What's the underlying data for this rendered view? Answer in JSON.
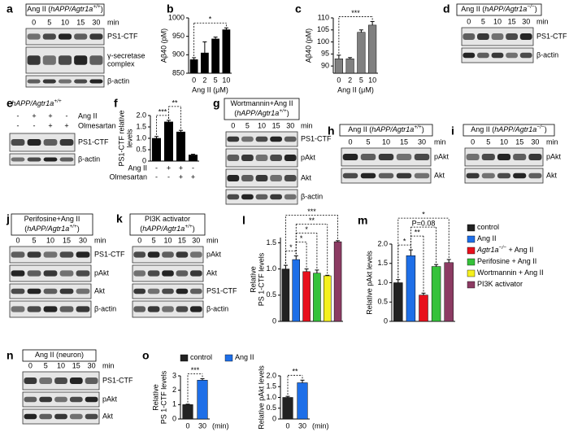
{
  "blots": [
    {
      "letter": "a",
      "title": [
        [
          [
            "Ang II (",
            "normal"
          ],
          [
            "hAPP/Agtr1a",
            "italic"
          ],
          [
            "+/+",
            "italic-sup"
          ],
          [
            ")",
            "normal"
          ]
        ]
      ],
      "lanes": [
        "0",
        "5",
        "10",
        "15",
        "30"
      ],
      "unit": "min",
      "rows": [
        "PS1-CTF",
        [
          "γ-secretase",
          "complex"
        ],
        "β-actin"
      ]
    },
    {
      "letter": "d",
      "title": [
        [
          [
            "Ang II (",
            "normal"
          ],
          [
            "hAPP/Agtr1a",
            "italic"
          ],
          [
            "−/−",
            "italic-sup"
          ],
          [
            ")",
            "normal"
          ]
        ]
      ],
      "lanes": [
        "0",
        "5",
        "10",
        "15",
        "30"
      ],
      "unit": "min",
      "rows": [
        "PS1-CTF",
        "β-actin"
      ]
    },
    {
      "letter": "e",
      "title": [
        [
          [
            "hAPP/Agtr1a",
            "italic"
          ],
          [
            "+/+",
            "italic-sup"
          ]
        ]
      ],
      "treatments": [
        {
          "name": "Ang II",
          "signs": [
            "-",
            "+",
            "+",
            "-"
          ]
        },
        {
          "name": "Olmesartan",
          "signs": [
            "-",
            "-",
            "+",
            "+"
          ]
        }
      ],
      "rows": [
        "PS1-CTF",
        "β-actin"
      ]
    },
    {
      "letter": "g",
      "title": [
        [
          [
            "Wortmannin+Ang II",
            "normal"
          ]
        ],
        [
          [
            "(",
            "normal"
          ],
          [
            "hAPP/Agtr1a",
            "italic"
          ],
          [
            "+/+",
            "italic-sup"
          ],
          [
            ")",
            "normal"
          ]
        ]
      ],
      "lanes": [
        "0",
        "5",
        "10",
        "15",
        "30"
      ],
      "unit": "min",
      "rows": [
        "PS1-CTF",
        "pAkt",
        "Akt",
        "β-actin"
      ]
    },
    {
      "letter": "h",
      "title": [
        [
          [
            "Ang II (",
            "normal"
          ],
          [
            "hAPP/Agtr1a",
            "italic"
          ],
          [
            "+/+",
            "italic-sup"
          ],
          [
            ")",
            "normal"
          ]
        ]
      ],
      "lanes": [
        "0",
        "5",
        "10",
        "15",
        "30"
      ],
      "unit": "min",
      "rows": [
        "pAkt",
        "Akt"
      ]
    },
    {
      "letter": "i",
      "title": [
        [
          [
            "Ang II (",
            "normal"
          ],
          [
            "hAPP/Agtr1a",
            "italic"
          ],
          [
            "−/−",
            "italic-sup"
          ],
          [
            ")",
            "normal"
          ]
        ]
      ],
      "lanes": [
        "0",
        "5",
        "10",
        "15",
        "30"
      ],
      "unit": "min",
      "rows": [
        "pAkt",
        "Akt"
      ]
    },
    {
      "letter": "j",
      "title": [
        [
          [
            "Perifosine+Ang II",
            "normal"
          ]
        ],
        [
          [
            "(",
            "normal"
          ],
          [
            "hAPP/Agtr1a",
            "italic"
          ],
          [
            "+/+",
            "italic-sup"
          ],
          [
            ")",
            "normal"
          ]
        ]
      ],
      "lanes": [
        "0",
        "5",
        "10",
        "15",
        "30"
      ],
      "unit": "min",
      "rows": [
        "PS1-CTF",
        "pAkt",
        "Akt",
        "β-actin"
      ]
    },
    {
      "letter": "k",
      "title": [
        [
          [
            "PI3K activator",
            "normal"
          ]
        ],
        [
          [
            "(",
            "normal"
          ],
          [
            "hAPP/Agtr1a",
            "italic"
          ],
          [
            "+/+",
            "italic-sup"
          ],
          [
            ")",
            "normal"
          ]
        ]
      ],
      "lanes": [
        "0",
        "5",
        "10",
        "15",
        "30"
      ],
      "unit": "min",
      "rows": [
        "pAkt",
        "Akt",
        "PS1-CTF",
        "β-actin"
      ]
    },
    {
      "letter": "n",
      "title": [
        [
          [
            "Ang II (neuron)",
            "normal"
          ]
        ]
      ],
      "lanes": [
        "0",
        "5",
        "10",
        "15",
        "30"
      ],
      "unit": "min",
      "rows": [
        "PS1-CTF",
        "pAkt",
        "Akt"
      ]
    }
  ],
  "chart_data": [
    {
      "type": "bar",
      "letter": "b",
      "ylabel": [
        "Aβ40 (pM)"
      ],
      "xlabel": "Ang II (μM)",
      "categories": [
        "0",
        "2",
        "5",
        "10"
      ],
      "values": [
        887,
        905,
        943,
        968
      ],
      "errors": [
        5,
        30,
        5,
        5
      ],
      "colors": [
        "#000000",
        "#000000",
        "#000000",
        "#000000"
      ],
      "ylim": [
        850,
        1000
      ],
      "yticks": [
        850,
        900,
        950,
        1000
      ],
      "significance": [
        {
          "from": 0,
          "to": 3,
          "label": "*"
        }
      ]
    },
    {
      "type": "bar",
      "letter": "c",
      "ylabel": [
        "Aβ40 (pM)"
      ],
      "xlabel": "Ang II (μM)",
      "categories": [
        "0",
        "2",
        "5",
        "10"
      ],
      "values": [
        93,
        93,
        104,
        107
      ],
      "errors": [
        1.5,
        0.5,
        1,
        1.5
      ],
      "colors": [
        "#808080",
        "#808080",
        "#808080",
        "#808080"
      ],
      "ylim": [
        87,
        110
      ],
      "yticks": [
        90,
        95,
        100,
        105,
        110
      ],
      "significance": [
        {
          "from": 0,
          "to": 3,
          "label": "***"
        }
      ]
    },
    {
      "type": "bar",
      "letter": "f",
      "ylabel": [
        "PS1-CTF relative",
        "levels"
      ],
      "treatments": [
        {
          "name": "Ang II",
          "signs": [
            "-",
            "+",
            "+",
            "-"
          ]
        },
        {
          "name": "Olmesartan",
          "signs": [
            "-",
            "-",
            "+",
            "+"
          ]
        }
      ],
      "values": [
        1.0,
        1.72,
        1.28,
        0.27
      ],
      "errors": [
        0.08,
        0.07,
        0.07,
        0.03
      ],
      "colors": [
        "#000000",
        "#000000",
        "#000000",
        "#000000"
      ],
      "ylim": [
        0,
        2
      ],
      "yticks": [
        0,
        0.5,
        {
          "value": 1,
          "label": "1.0"
        },
        1.5,
        {
          "value": 2,
          "label": "2.0"
        }
      ],
      "significance": [
        {
          "from": 0,
          "to": 1,
          "label": "***"
        },
        {
          "from": 1,
          "to": 2,
          "label": "**"
        }
      ]
    },
    {
      "type": "bar",
      "letter": "l",
      "ylabel": [
        "Relative",
        "PS 1-CTF levels"
      ],
      "values": [
        1.0,
        1.18,
        0.95,
        0.92,
        0.87,
        1.52
      ],
      "errors": [
        0.07,
        0.07,
        0.05,
        0.06,
        0.01,
        0.02
      ],
      "colors": [
        "#222222",
        "#1e6fe8",
        "#e8101c",
        "#35c23a",
        "#f5f01e",
        "#8c3b63"
      ],
      "ylim": [
        0,
        1.6
      ],
      "yticks": [
        0,
        0.5,
        {
          "value": 1,
          "label": "1.0"
        },
        1.5
      ],
      "significance": [
        {
          "from": 0,
          "to": 1,
          "label": "*"
        },
        {
          "from": 1,
          "to": 2,
          "label": "*"
        },
        {
          "from": 1,
          "to": 3,
          "label": "*"
        },
        {
          "from": 1,
          "to": 4,
          "label": "**"
        },
        {
          "from": 0,
          "to": 5,
          "label": "***"
        }
      ]
    },
    {
      "type": "bar",
      "letter": "m",
      "ylabel": [
        "Relative pAkt levels"
      ],
      "values": [
        1.0,
        1.7,
        0.68,
        1.42,
        1.52
      ],
      "errors": [
        0.08,
        0.15,
        0.05,
        0.05,
        0.08
      ],
      "colors": [
        "#222222",
        "#1e6fe8",
        "#e8101c",
        "#35c23a",
        "#8c3b63"
      ],
      "ylim": [
        0,
        2
      ],
      "yticks": [
        0,
        0.5,
        {
          "value": 1,
          "label": "1.0"
        },
        1.5,
        {
          "value": 2,
          "label": "2.0"
        }
      ],
      "significance": [
        {
          "from": 0,
          "to": 1,
          "label": "*"
        },
        {
          "from": 1,
          "to": 2,
          "label": "**"
        },
        {
          "from": 1,
          "to": 3,
          "label": "P=0.08"
        },
        {
          "from": 0,
          "to": 4,
          "label": "*"
        }
      ],
      "legend": [
        {
          "name": [
            [
              "control",
              "normal"
            ]
          ],
          "color": "#222222"
        },
        {
          "name": [
            [
              "Ang II",
              "normal"
            ]
          ],
          "color": "#1e6fe8"
        },
        {
          "name": [
            [
              "Agtr1a",
              "italic"
            ],
            [
              "−/−",
              "italic-sup"
            ],
            [
              " + Ang II",
              "normal"
            ]
          ],
          "color": "#e8101c"
        },
        {
          "name": [
            [
              "Perifosine + Ang II",
              "normal"
            ]
          ],
          "color": "#35c23a"
        },
        {
          "name": [
            [
              "Wortmannin + Ang II",
              "normal"
            ]
          ],
          "color": "#f5f01e"
        },
        {
          "name": [
            [
              "PI3K activator",
              "normal"
            ]
          ],
          "color": "#8c3b63"
        }
      ]
    },
    {
      "type": "bar",
      "letter": "o",
      "ylabel": [
        "Relative",
        "PS 1-CTF levels"
      ],
      "xlabel": "(min)",
      "categories": [
        "0",
        "30"
      ],
      "values": [
        1.0,
        2.7
      ],
      "errors": [
        0.03,
        0.1
      ],
      "colors": [
        "#222222",
        "#1e6fe8"
      ],
      "ylim": [
        0,
        3
      ],
      "yticks": [
        0,
        1,
        2,
        3
      ],
      "significance": [
        {
          "from": 0,
          "to": 1,
          "label": "***"
        }
      ],
      "legend": [
        {
          "name": [
            [
              "control",
              "normal"
            ]
          ],
          "color": "#222222"
        },
        {
          "name": [
            [
              "Ang II",
              "normal"
            ]
          ],
          "color": "#1e6fe8"
        }
      ]
    },
    {
      "type": "bar",
      "ylabel": [
        "Relative pAkt levels"
      ],
      "xlabel": "(min)",
      "categories": [
        "0",
        "30"
      ],
      "values": [
        1.0,
        1.68
      ],
      "errors": [
        0.05,
        0.12
      ],
      "colors": [
        "#222222",
        "#1e6fe8"
      ],
      "ylim": [
        0,
        2
      ],
      "yticks": [
        0,
        0.5,
        {
          "value": 1,
          "label": "1.0"
        },
        1.5,
        {
          "value": 2,
          "label": "2.0"
        }
      ],
      "significance": [
        {
          "from": 0,
          "to": 1,
          "label": "**"
        }
      ]
    }
  ]
}
